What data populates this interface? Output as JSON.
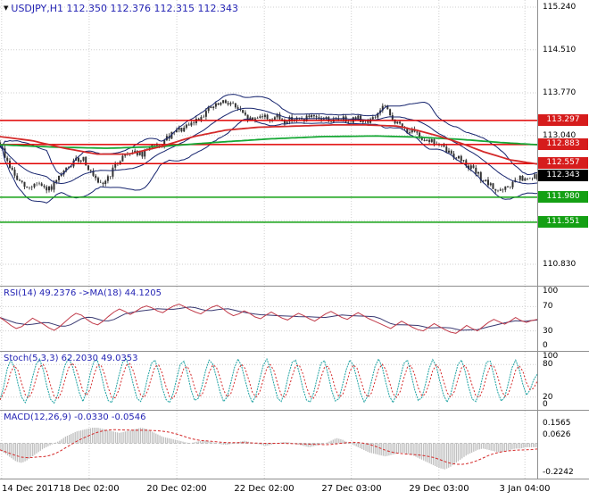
{
  "title": {
    "icon": "▼",
    "text": "USDJPY,H1 112.350 112.376 112.315 112.343",
    "symbol": "USDJPY",
    "timeframe": "H1",
    "open": "112.350",
    "high": "112.376",
    "low": "112.315",
    "close": "112.343"
  },
  "colors": {
    "background": "#ffffff",
    "grid": "#cfcfcf",
    "separator": "#8f8f8f",
    "title_text": "#2424b4",
    "axis_text": "#000000",
    "candle": "#333333",
    "bollinger": "#16246e",
    "ma_red": "#d42a2a",
    "ma_green": "#16a835",
    "hline_red": "#e00000",
    "hline_green": "#13a013",
    "badge_red": "#d61c1c",
    "badge_green": "#14a014",
    "badge_black": "#000000",
    "rsi_line": "#c13b4a",
    "rsi_ma": "#3a3a72",
    "stoch_main": "#1fa3a3",
    "stoch_signal": "#d42a2a",
    "macd_hist": "#bfbfbf",
    "macd_signal": "#d42a2a"
  },
  "x_axis": {
    "labels": [
      "14 Dec 2017",
      "18 Dec 02:00",
      "20 Dec 02:00",
      "22 Dec 02:00",
      "27 Dec 03:00",
      "29 Dec 03:00",
      "3 Jan 04:00"
    ],
    "fractions": [
      0.003,
      0.166,
      0.329,
      0.492,
      0.654,
      0.817,
      0.977
    ]
  },
  "chart_data": [
    {
      "type": "candlestick",
      "name": "USDJPY H1 price with Bollinger Bands, red and green moving averages, support and resistance lines",
      "ylim": [
        110.4625,
        115.3625
      ],
      "y_grid": [
        115.24,
        114.51,
        113.77,
        113.04,
        112.31,
        111.58,
        110.83
      ],
      "y_tick_labels": [
        {
          "price": 115.24,
          "label": "115.240"
        },
        {
          "price": 114.51,
          "label": "114.510"
        },
        {
          "price": 113.77,
          "label": "113.770"
        },
        {
          "price": 113.04,
          "label": "113.040"
        },
        {
          "price": 110.83,
          "label": "110.830"
        }
      ],
      "hlines": [
        {
          "price": 113.297,
          "label": "113.297",
          "color": "red"
        },
        {
          "price": 112.883,
          "label": "112.883",
          "color": "red"
        },
        {
          "price": 112.557,
          "label": "112.557",
          "color": "red"
        },
        {
          "price": 111.98,
          "label": "111.980",
          "color": "green"
        },
        {
          "price": 111.551,
          "label": "111.551",
          "color": "green"
        }
      ],
      "current_price": {
        "price": 112.343,
        "label": "112.343"
      },
      "candle_count": 220,
      "bollinger": {
        "period": 20,
        "deviation": 2
      },
      "close_path": [
        [
          0.0,
          112.88
        ],
        [
          0.012,
          112.62
        ],
        [
          0.03,
          112.3
        ],
        [
          0.05,
          112.12
        ],
        [
          0.07,
          112.24
        ],
        [
          0.085,
          112.08
        ],
        [
          0.1,
          112.18
        ],
        [
          0.12,
          112.42
        ],
        [
          0.14,
          112.6
        ],
        [
          0.155,
          112.66
        ],
        [
          0.17,
          112.38
        ],
        [
          0.185,
          112.16
        ],
        [
          0.2,
          112.3
        ],
        [
          0.215,
          112.52
        ],
        [
          0.23,
          112.71
        ],
        [
          0.25,
          112.78
        ],
        [
          0.265,
          112.68
        ],
        [
          0.28,
          112.88
        ],
        [
          0.295,
          112.8
        ],
        [
          0.31,
          112.98
        ],
        [
          0.33,
          113.12
        ],
        [
          0.35,
          113.18
        ],
        [
          0.37,
          113.34
        ],
        [
          0.39,
          113.5
        ],
        [
          0.41,
          113.58
        ],
        [
          0.425,
          113.62
        ],
        [
          0.44,
          113.52
        ],
        [
          0.455,
          113.36
        ],
        [
          0.47,
          113.3
        ],
        [
          0.485,
          113.4
        ],
        [
          0.5,
          113.32
        ],
        [
          0.515,
          113.36
        ],
        [
          0.53,
          113.28
        ],
        [
          0.545,
          113.34
        ],
        [
          0.56,
          113.3
        ],
        [
          0.575,
          113.36
        ],
        [
          0.59,
          113.3
        ],
        [
          0.605,
          113.34
        ],
        [
          0.62,
          113.28
        ],
        [
          0.635,
          113.33
        ],
        [
          0.65,
          113.3
        ],
        [
          0.665,
          113.34
        ],
        [
          0.68,
          113.28
        ],
        [
          0.695,
          113.32
        ],
        [
          0.705,
          113.44
        ],
        [
          0.715,
          113.56
        ],
        [
          0.725,
          113.38
        ],
        [
          0.74,
          113.24
        ],
        [
          0.755,
          113.14
        ],
        [
          0.77,
          113.08
        ],
        [
          0.785,
          113.0
        ],
        [
          0.8,
          112.96
        ],
        [
          0.815,
          112.88
        ],
        [
          0.83,
          112.78
        ],
        [
          0.845,
          112.7
        ],
        [
          0.86,
          112.62
        ],
        [
          0.875,
          112.5
        ],
        [
          0.89,
          112.36
        ],
        [
          0.905,
          112.22
        ],
        [
          0.92,
          112.12
        ],
        [
          0.935,
          112.08
        ],
        [
          0.95,
          112.18
        ],
        [
          0.965,
          112.3
        ],
        [
          0.98,
          112.26
        ],
        [
          1.0,
          112.34
        ]
      ],
      "ma_red_path": [
        [
          0.0,
          113.02
        ],
        [
          0.06,
          112.95
        ],
        [
          0.12,
          112.82
        ],
        [
          0.18,
          112.72
        ],
        [
          0.24,
          112.72
        ],
        [
          0.3,
          112.85
        ],
        [
          0.36,
          113.02
        ],
        [
          0.42,
          113.13
        ],
        [
          0.48,
          113.18
        ],
        [
          0.55,
          113.2
        ],
        [
          0.62,
          113.22
        ],
        [
          0.68,
          113.22
        ],
        [
          0.74,
          113.2
        ],
        [
          0.78,
          113.12
        ],
        [
          0.82,
          113.02
        ],
        [
          0.86,
          112.9
        ],
        [
          0.9,
          112.76
        ],
        [
          0.95,
          112.62
        ],
        [
          1.0,
          112.55
        ]
      ],
      "ma_green_path": [
        [
          0.0,
          112.88
        ],
        [
          0.1,
          112.84
        ],
        [
          0.2,
          112.82
        ],
        [
          0.3,
          112.85
        ],
        [
          0.4,
          112.92
        ],
        [
          0.5,
          112.98
        ],
        [
          0.6,
          113.02
        ],
        [
          0.7,
          113.03
        ],
        [
          0.78,
          113.01
        ],
        [
          0.86,
          112.97
        ],
        [
          0.93,
          112.92
        ],
        [
          1.0,
          112.88
        ]
      ]
    },
    {
      "type": "line",
      "name": "RSI",
      "label": "RSI(14) 49.2376 ->MA(18) 44.1205",
      "value": "49.2376",
      "ma_value": "44.1205",
      "ylim": [
        0,
        100
      ],
      "levels": [
        70,
        30
      ],
      "y_tick_labels": [
        {
          "value": 100,
          "label": "100"
        },
        {
          "value": 70,
          "label": "70"
        },
        {
          "value": 30,
          "label": "30"
        },
        {
          "value": 0,
          "label": "0"
        }
      ],
      "values": [
        52,
        46,
        39,
        34,
        37,
        44,
        51,
        46,
        41,
        35,
        31,
        37,
        45,
        53,
        59,
        56,
        49,
        43,
        40,
        46,
        54,
        61,
        66,
        62,
        57,
        62,
        68,
        71,
        68,
        63,
        60,
        66,
        71,
        74,
        70,
        65,
        61,
        58,
        64,
        69,
        72,
        67,
        60,
        55,
        58,
        63,
        59,
        53,
        50,
        56,
        61,
        56,
        51,
        48,
        54,
        59,
        55,
        50,
        46,
        52,
        58,
        62,
        57,
        52,
        49,
        55,
        60,
        55,
        50,
        46,
        42,
        38,
        34,
        40,
        46,
        41,
        36,
        32,
        30,
        36,
        42,
        37,
        32,
        28,
        26,
        32,
        39,
        34,
        30,
        37,
        44,
        49,
        45,
        41,
        46,
        52,
        47,
        44,
        47,
        49
      ]
    },
    {
      "type": "line",
      "name": "Stochastic Oscillator",
      "label": "Stoch(5,3,3) 62.2030 49.0353",
      "value": "62.2030",
      "signal_value": "49.0353",
      "ylim": [
        0,
        100
      ],
      "levels": [
        80,
        20
      ],
      "y_tick_labels": [
        {
          "value": 100,
          "label": "100"
        },
        {
          "value": 80,
          "label": "80"
        },
        {
          "value": 20,
          "label": "20"
        },
        {
          "value": 0,
          "label": "0"
        }
      ],
      "values": [
        15,
        38,
        72,
        88,
        74,
        44,
        20,
        10,
        26,
        56,
        80,
        90,
        70,
        40,
        16,
        9,
        24,
        52,
        78,
        91,
        79,
        54,
        28,
        12,
        30,
        62,
        85,
        88,
        64,
        34,
        14,
        10,
        32,
        60,
        84,
        90,
        71,
        42,
        18,
        12,
        28,
        58,
        82,
        88,
        67,
        37,
        16,
        10,
        26,
        54,
        80,
        86,
        63,
        33,
        14,
        18,
        40,
        68,
        88,
        81,
        57,
        30,
        12,
        20,
        46,
        74,
        90,
        77,
        51,
        26,
        10,
        24,
        52,
        78,
        90,
        71,
        43,
        18,
        12,
        30,
        60,
        84,
        88,
        65,
        36,
        15,
        11,
        28,
        56,
        82,
        87,
        61,
        32,
        13,
        17,
        42,
        70,
        88,
        79,
        53,
        27,
        11,
        22,
        48,
        76,
        90,
        75,
        47,
        22,
        10,
        26,
        56,
        82,
        88,
        63,
        34,
        14,
        19,
        44,
        72,
        89,
        77,
        49,
        24,
        11,
        25,
        54,
        80,
        88,
        67,
        38,
        16,
        12,
        32,
        62,
        85,
        86,
        59,
        30,
        13,
        20,
        46,
        74,
        88,
        71,
        44,
        24,
        33,
        52,
        62
      ]
    },
    {
      "type": "bar",
      "name": "MACD histogram with signal line",
      "label": "MACD(12,26,9) -0.0330 -0.0546",
      "value": "-0.0330",
      "signal_value": "-0.0546",
      "ylim": [
        -0.27,
        0.25
      ],
      "y_tick_labels": [
        {
          "value": 0.1565,
          "label": "0.1565"
        },
        {
          "value": 0.0626,
          "label": "0.0626"
        },
        {
          "value": -0.2242,
          "label": "-0.2242"
        }
      ],
      "values": [
        -0.05,
        -0.08,
        -0.11,
        -0.14,
        -0.15,
        -0.13,
        -0.1,
        -0.07,
        -0.04,
        -0.02,
        0.0,
        0.02,
        0.05,
        0.07,
        0.09,
        0.1,
        0.11,
        0.12,
        0.12,
        0.11,
        0.1,
        0.09,
        0.08,
        0.09,
        0.1,
        0.11,
        0.12,
        0.11,
        0.09,
        0.07,
        0.05,
        0.04,
        0.03,
        0.02,
        0.01,
        0.0,
        0.01,
        0.02,
        0.02,
        0.01,
        0.0,
        -0.01,
        -0.01,
        0.0,
        0.01,
        0.02,
        0.01,
        0.0,
        -0.01,
        -0.02,
        -0.01,
        0.0,
        0.01,
        0.01,
        0.0,
        -0.01,
        -0.02,
        -0.03,
        -0.02,
        -0.01,
        0.0,
        0.02,
        0.04,
        0.03,
        0.01,
        -0.01,
        -0.03,
        -0.05,
        -0.07,
        -0.08,
        -0.09,
        -0.1,
        -0.09,
        -0.08,
        -0.07,
        -0.08,
        -0.09,
        -0.11,
        -0.13,
        -0.15,
        -0.17,
        -0.19,
        -0.2,
        -0.18,
        -0.15,
        -0.12,
        -0.09,
        -0.07,
        -0.05,
        -0.04,
        -0.05,
        -0.06,
        -0.07,
        -0.06,
        -0.05,
        -0.04,
        -0.04,
        -0.03,
        -0.03,
        -0.03
      ]
    }
  ]
}
